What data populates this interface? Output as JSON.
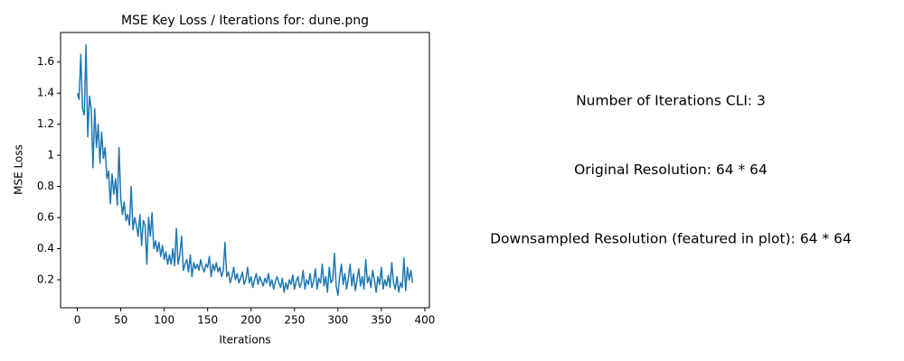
{
  "chart_data": {
    "type": "line",
    "title": "MSE Key Loss / Iterations for: dune.png",
    "x_label": "Iterations",
    "y_label": "MSE Loss",
    "xlim": [
      -19.3,
      405.3
    ],
    "xticks": [
      0,
      50,
      100,
      150,
      200,
      250,
      300,
      350,
      400
    ],
    "ylim": [
      0.02,
      1.79
    ],
    "yticks": [
      0.2,
      0.4,
      0.6,
      0.8,
      1.0,
      1.2,
      1.4,
      1.6
    ],
    "grid": false,
    "x": [
      0,
      2,
      4,
      6,
      8,
      10,
      12,
      14,
      16,
      18,
      20,
      22,
      24,
      26,
      28,
      30,
      32,
      34,
      36,
      38,
      40,
      42,
      44,
      46,
      48,
      50,
      52,
      54,
      56,
      58,
      60,
      62,
      64,
      66,
      68,
      70,
      72,
      74,
      76,
      78,
      80,
      82,
      84,
      86,
      88,
      90,
      92,
      94,
      96,
      98,
      100,
      102,
      104,
      106,
      108,
      110,
      112,
      114,
      116,
      118,
      120,
      122,
      124,
      126,
      128,
      130,
      132,
      134,
      136,
      138,
      140,
      142,
      144,
      146,
      148,
      150,
      152,
      154,
      156,
      158,
      160,
      162,
      164,
      166,
      168,
      170,
      172,
      174,
      176,
      178,
      180,
      182,
      184,
      186,
      188,
      190,
      192,
      194,
      196,
      198,
      200,
      202,
      204,
      206,
      208,
      210,
      212,
      214,
      216,
      218,
      220,
      222,
      224,
      226,
      228,
      230,
      232,
      234,
      236,
      238,
      240,
      242,
      244,
      246,
      248,
      250,
      252,
      254,
      256,
      258,
      260,
      262,
      264,
      266,
      268,
      270,
      272,
      274,
      276,
      278,
      280,
      282,
      284,
      286,
      288,
      290,
      292,
      294,
      296,
      298,
      300,
      302,
      304,
      306,
      308,
      310,
      312,
      314,
      316,
      318,
      320,
      322,
      324,
      326,
      328,
      330,
      332,
      334,
      336,
      338,
      340,
      342,
      344,
      346,
      348,
      350,
      352,
      354,
      356,
      358,
      360,
      362,
      364,
      366,
      368,
      370,
      372,
      374,
      376,
      378,
      380,
      382,
      384,
      386
    ],
    "series": [
      {
        "color": "#1f77b4",
        "values": [
          1.4,
          1.36,
          1.65,
          1.3,
          1.26,
          1.71,
          1.12,
          1.38,
          1.3,
          0.92,
          1.3,
          1.05,
          1.2,
          0.95,
          1.15,
          0.98,
          1.05,
          0.85,
          0.9,
          0.69,
          0.88,
          0.75,
          0.85,
          0.68,
          1.05,
          0.72,
          0.62,
          0.7,
          0.58,
          0.62,
          0.55,
          0.8,
          0.52,
          0.6,
          0.55,
          0.48,
          0.62,
          0.42,
          0.58,
          0.55,
          0.3,
          0.6,
          0.48,
          0.63,
          0.4,
          0.45,
          0.38,
          0.44,
          0.35,
          0.42,
          0.33,
          0.38,
          0.3,
          0.36,
          0.3,
          0.4,
          0.29,
          0.53,
          0.3,
          0.36,
          0.48,
          0.26,
          0.3,
          0.33,
          0.25,
          0.36,
          0.22,
          0.31,
          0.27,
          0.3,
          0.26,
          0.33,
          0.28,
          0.25,
          0.3,
          0.28,
          0.35,
          0.22,
          0.3,
          0.26,
          0.31,
          0.25,
          0.28,
          0.22,
          0.26,
          0.44,
          0.22,
          0.25,
          0.18,
          0.22,
          0.28,
          0.2,
          0.24,
          0.18,
          0.21,
          0.25,
          0.17,
          0.2,
          0.28,
          0.18,
          0.22,
          0.15,
          0.2,
          0.24,
          0.17,
          0.22,
          0.19,
          0.16,
          0.21,
          0.18,
          0.24,
          0.16,
          0.2,
          0.14,
          0.19,
          0.22,
          0.18,
          0.15,
          0.21,
          0.12,
          0.18,
          0.14,
          0.2,
          0.17,
          0.23,
          0.14,
          0.19,
          0.22,
          0.15,
          0.18,
          0.26,
          0.14,
          0.2,
          0.17,
          0.24,
          0.15,
          0.19,
          0.27,
          0.14,
          0.21,
          0.18,
          0.3,
          0.16,
          0.22,
          0.12,
          0.28,
          0.18,
          0.2,
          0.37,
          0.16,
          0.1,
          0.22,
          0.3,
          0.17,
          0.24,
          0.14,
          0.21,
          0.3,
          0.16,
          0.24,
          0.13,
          0.2,
          0.27,
          0.16,
          0.22,
          0.14,
          0.33,
          0.18,
          0.22,
          0.15,
          0.26,
          0.2,
          0.12,
          0.22,
          0.17,
          0.28,
          0.14,
          0.2,
          0.16,
          0.23,
          0.15,
          0.31,
          0.18,
          0.14,
          0.22,
          0.12,
          0.18,
          0.15,
          0.34,
          0.13,
          0.28,
          0.2,
          0.26,
          0.18
        ]
      }
    ],
    "annotations": [
      "Number of Iterations CLI: 3",
      "Original Resolution: 64 * 64",
      "Downsampled Resolution (featured in plot): 64 * 64"
    ]
  }
}
